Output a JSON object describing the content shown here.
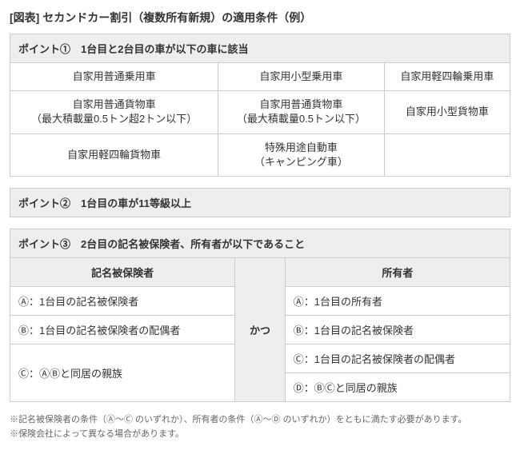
{
  "title": "[図表] セカンドカー割引（複数所有新規）の適用条件（例）",
  "point1": {
    "header": "ポイント①　1台目と2台目の車が以下の車に該当",
    "rows": [
      [
        "自家用普通乗用車",
        "自家用小型乗用車",
        "自家用軽四輪乗用車"
      ],
      [
        "自家用普通貨物車\n（最大積載量0.5トン超2トン以下）",
        "自家用普通貨物車\n（最大積載量0.5トン以下）",
        "自家用小型貨物車"
      ],
      [
        "自家用軽四輪貨物車",
        "特殊用途自動車\n（キャンピング車）",
        ""
      ]
    ]
  },
  "point2": {
    "header": "ポイント②　1台目の車が11等級以上"
  },
  "point3": {
    "header": "ポイント③　2台目の記名被保険者、所有者が以下であること",
    "left_header": "記名被保険者",
    "right_header": "所有者",
    "connector": "かつ",
    "left_rows": [
      "Ⓐ：1台目の記名被保険者",
      "Ⓑ：1台目の記名被保険者の配偶者",
      "Ⓒ：ⒶⒷと同居の親族"
    ],
    "right_rows": [
      "Ⓐ：1台目の所有者",
      "Ⓑ：1台目の記名被保険者",
      "Ⓒ：1台目の記名被保険者の配偶者",
      "Ⓓ：ⒷⒸと同居の親族"
    ]
  },
  "notes": [
    "※記名被保険者の条件（Ⓐ～Ⓒ のいずれか）、所有者の条件（Ⓐ～Ⓓ のいずれか）をともに満たす必要があります。",
    "※保険会社によって異なる場合があります。"
  ]
}
